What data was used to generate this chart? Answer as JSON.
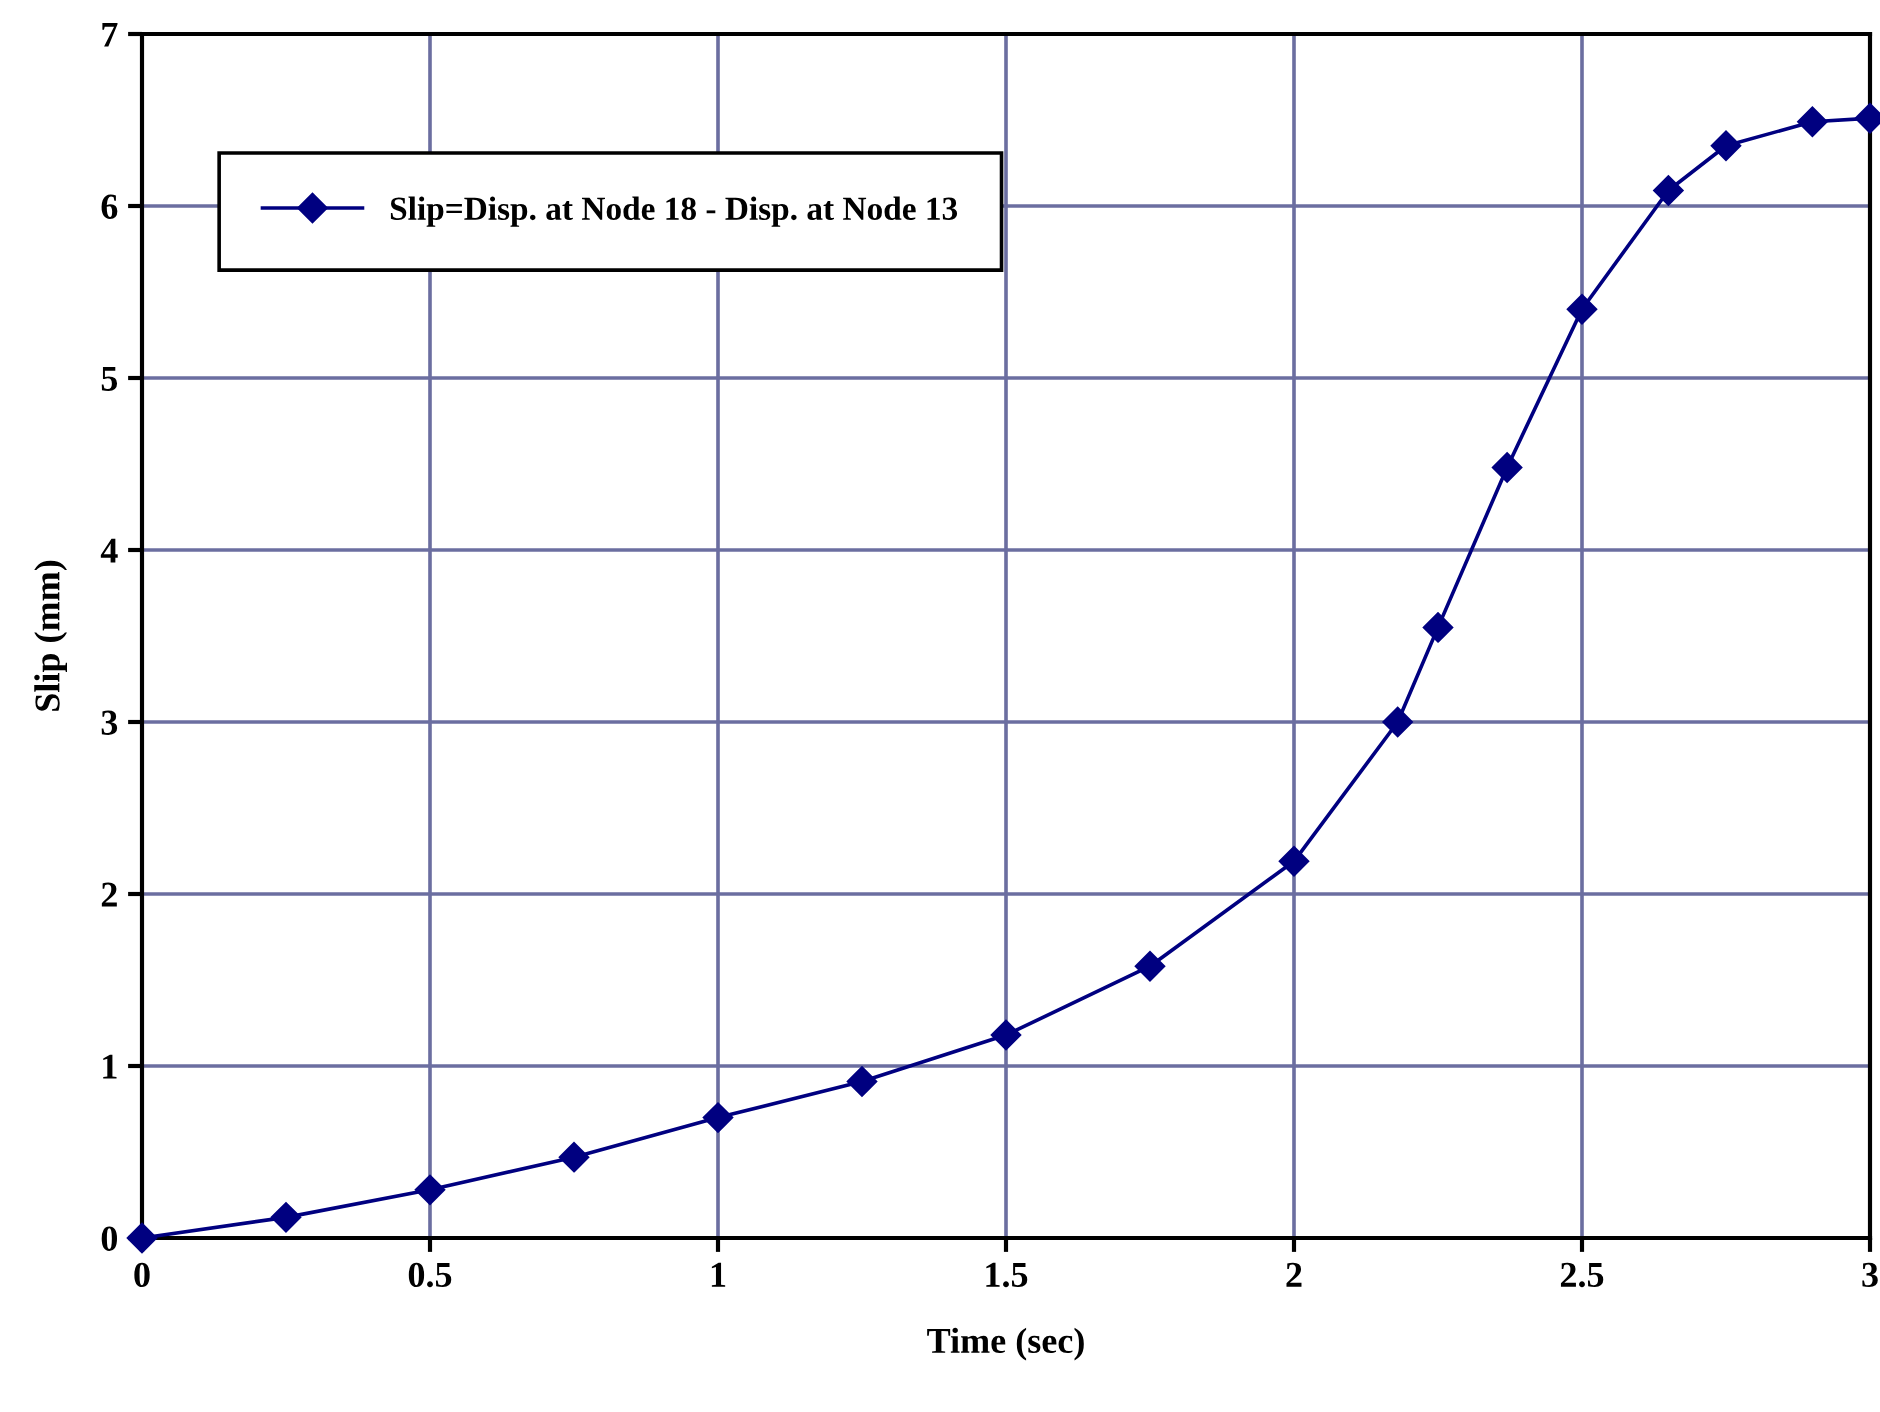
{
  "chart_data": {
    "type": "line",
    "xlabel": "Time (sec)",
    "ylabel": "Slip (mm)",
    "x": [
      0,
      0.25,
      0.5,
      0.75,
      1.0,
      1.25,
      1.5,
      1.75,
      2.0,
      2.18,
      2.25,
      2.37,
      2.5,
      2.65,
      2.75,
      2.9,
      3.0
    ],
    "series": [
      {
        "name": "Slip=Disp. at Node 18 - Disp. at Node 13",
        "color": "#000080",
        "values": [
          0,
          0.12,
          0.28,
          0.47,
          0.7,
          0.91,
          1.18,
          1.58,
          2.19,
          3.0,
          3.55,
          4.48,
          5.4,
          6.09,
          6.35,
          6.49,
          6.51
        ]
      }
    ],
    "xlim": [
      0,
      3
    ],
    "ylim": [
      0,
      7
    ],
    "xticks": [
      0,
      0.5,
      1,
      1.5,
      2,
      2.5,
      3
    ],
    "yticks": [
      0,
      1,
      2,
      3,
      4,
      5,
      6,
      7
    ],
    "grid": true,
    "legend": "top left",
    "marker": "diamond",
    "line_style": "solid"
  }
}
